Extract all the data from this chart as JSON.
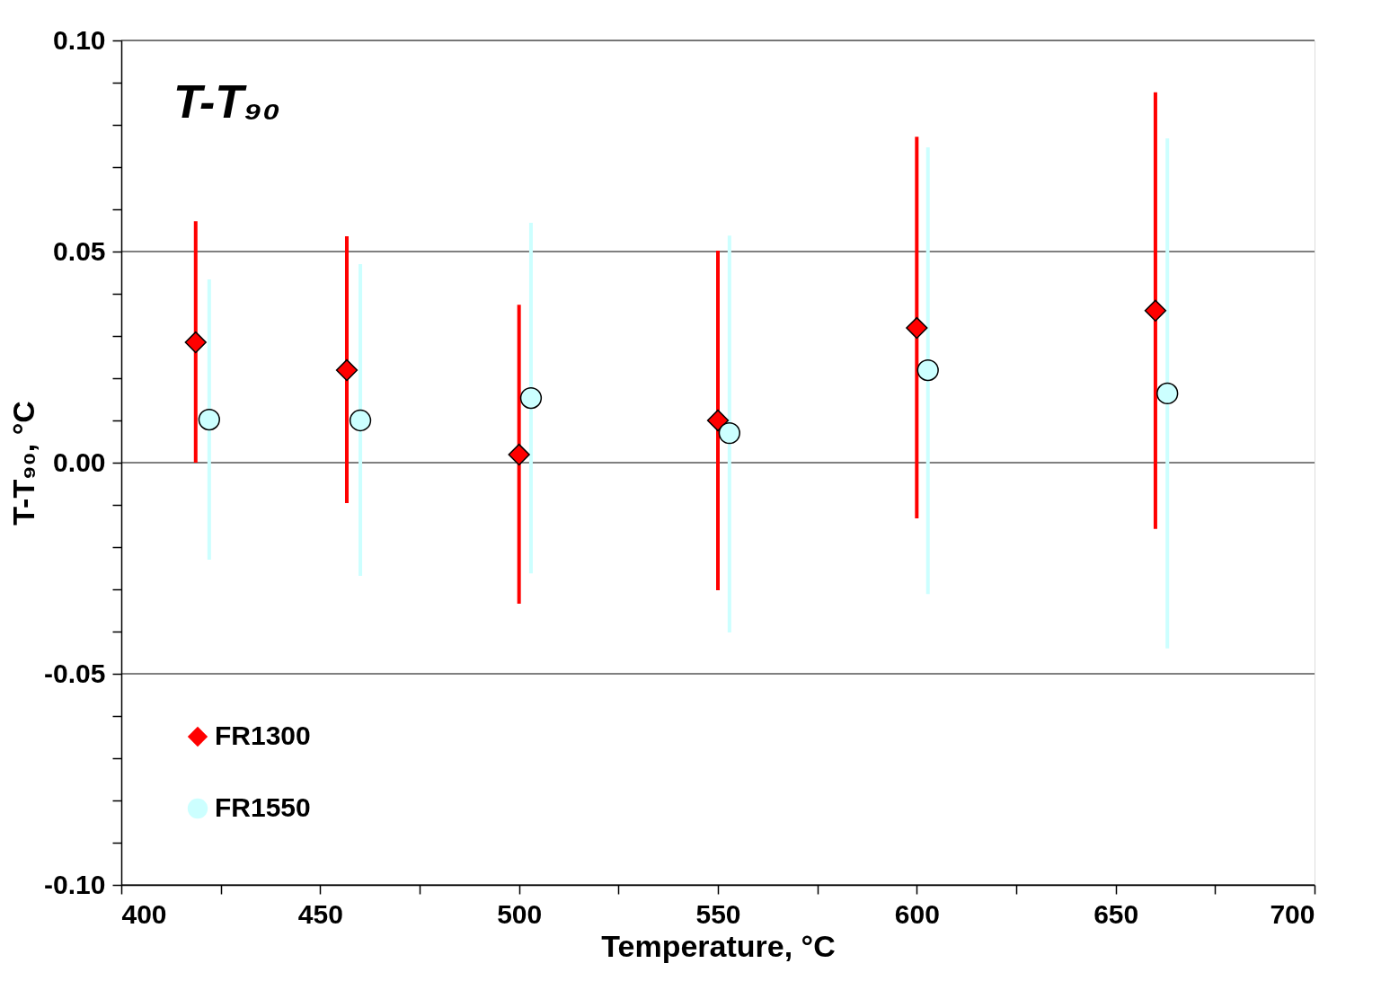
{
  "chart_data": {
    "type": "scatter",
    "xlabel": "Temperature, °C",
    "ylabel": "T-T₉₀, °C",
    "annotations": [
      "T-T₉₀"
    ],
    "xlim": [
      400,
      700
    ],
    "xticks": [
      400,
      {
        "value": 425,
        "label": null
      },
      450,
      {
        "value": 475,
        "label": null
      },
      500,
      {
        "value": 525,
        "label": null
      },
      550,
      {
        "value": 575,
        "label": null
      },
      600,
      {
        "value": 625,
        "label": null
      },
      650,
      {
        "value": 675,
        "label": null
      },
      700
    ],
    "ylim": [
      -0.1,
      0.1
    ],
    "yticks": [
      {
        "value": -0.1,
        "label": "-0.10"
      },
      {
        "value": -0.09,
        "label": null
      },
      {
        "value": -0.08,
        "label": null
      },
      {
        "value": -0.07,
        "label": null
      },
      {
        "value": -0.06,
        "label": null
      },
      {
        "value": -0.05,
        "label": "-0.05"
      },
      {
        "value": -0.04,
        "label": null
      },
      {
        "value": -0.03,
        "label": null
      },
      {
        "value": -0.02,
        "label": null
      },
      {
        "value": -0.01,
        "label": null
      },
      {
        "value": 0,
        "label": "0.00"
      },
      {
        "value": 0.01,
        "label": null
      },
      {
        "value": 0.02,
        "label": null
      },
      {
        "value": 0.03,
        "label": null
      },
      {
        "value": 0.04,
        "label": null
      },
      {
        "value": 0.05,
        "label": "0.05"
      },
      {
        "value": 0.06,
        "label": null
      },
      {
        "value": 0.07,
        "label": null
      },
      {
        "value": 0.08,
        "label": null
      },
      {
        "value": 0.09,
        "label": null
      },
      {
        "value": 0.1,
        "label": "0.10"
      }
    ],
    "grid": "y",
    "legend": "bottom left",
    "series": [
      {
        "name": "FR1300",
        "color": "#ff0000",
        "marker": "diamond",
        "x": [
          418.7,
          456.7,
          500,
          550,
          600,
          660
        ],
        "values": [
          0.0285,
          0.0219,
          0.0019,
          0.01,
          0.0319,
          0.036
        ],
        "errors": [
          [
            0.0,
            0.0572
          ],
          [
            -0.0096,
            0.0536
          ],
          [
            -0.0334,
            0.0374
          ],
          [
            -0.0302,
            0.0502
          ],
          [
            -0.0132,
            0.0772
          ],
          [
            -0.0157,
            0.0877
          ]
        ]
      },
      {
        "name": "FR1550",
        "color": "#ccffff",
        "marker": "circle",
        "x": [
          422.1,
          460.1,
          503,
          552.9,
          602.8,
          663
        ],
        "values": [
          0.0102,
          0.01,
          0.0153,
          0.007,
          0.0219,
          0.0164
        ],
        "errors": [
          [
            -0.023,
            0.0434
          ],
          [
            -0.0268,
            0.047
          ],
          [
            -0.0262,
            0.0568
          ],
          [
            -0.0402,
            0.0538
          ],
          [
            -0.0311,
            0.0747
          ],
          [
            -0.044,
            0.0768
          ]
        ]
      }
    ]
  }
}
